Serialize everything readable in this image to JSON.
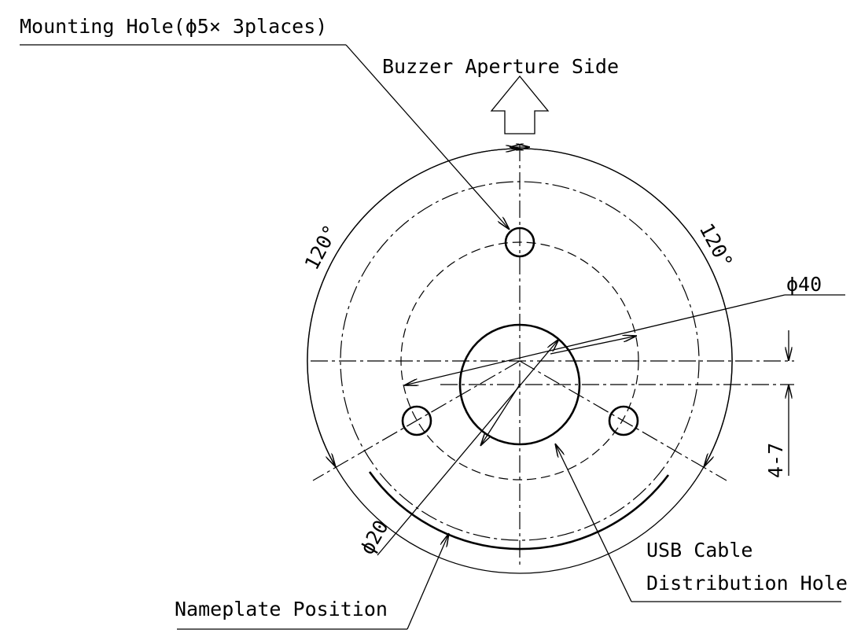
{
  "labels": {
    "mounting_hole": "Mounting Hole(ϕ5× 3places)",
    "buzzer": "Buzzer Aperture Side",
    "angle_left": "120°",
    "angle_right": "120°",
    "diameter_outer": "ϕ40",
    "diameter_inner": "ϕ20",
    "offset": "4-7",
    "usb_line1": "USB Cable",
    "usb_line2": "Distribution Hole",
    "nameplate": "Nameplate Position"
  }
}
